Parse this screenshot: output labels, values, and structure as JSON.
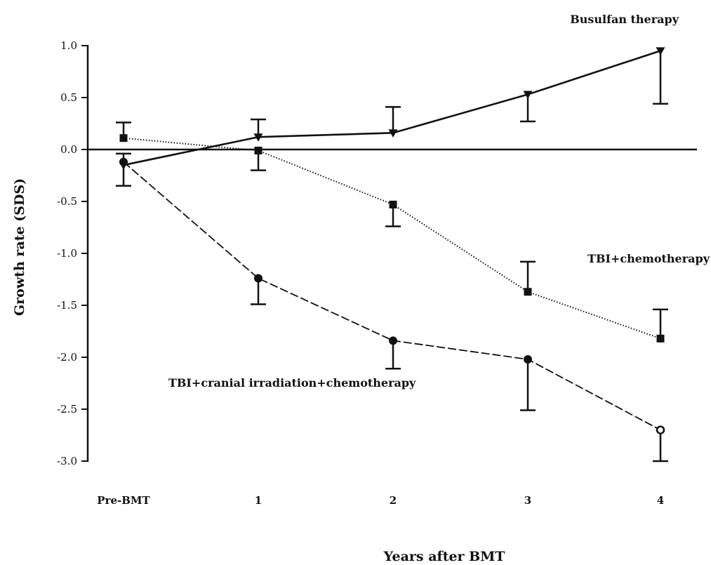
{
  "chart_data": {
    "type": "line",
    "title": "",
    "xlabel": "Years after BMT",
    "ylabel": "Growth rate (SDS)",
    "categories": [
      "Pre-BMT",
      "1",
      "2",
      "3",
      "4"
    ],
    "ylim": [
      -3.0,
      1.0
    ],
    "yticks": [
      "1.0",
      "0.5",
      "0.0",
      "-0.5",
      "-1.0",
      "-1.5",
      "-2.0",
      "-2.5",
      "-3.0"
    ],
    "reference_line": 0.0,
    "grid": false,
    "series": [
      {
        "name": "Busulfan therapy",
        "marker": "triangle-down",
        "line_style": "solid",
        "values": [
          -0.15,
          0.12,
          0.16,
          0.53,
          0.95
        ],
        "error_lower": [
          -0.35,
          null,
          null,
          0.27,
          0.44
        ],
        "error_upper": [
          null,
          0.29,
          0.41,
          null,
          null
        ]
      },
      {
        "name": "TBI+chemotherapy",
        "marker": "square",
        "line_style": "dotted",
        "values": [
          0.11,
          -0.01,
          -0.53,
          -1.37,
          -1.82
        ],
        "error_lower": [
          null,
          -0.2,
          -0.74,
          null,
          null
        ],
        "error_upper": [
          0.26,
          null,
          null,
          -1.08,
          -1.54
        ]
      },
      {
        "name": "TBI+cranial irradiation+chemotherapy",
        "marker": "circle",
        "line_style": "dashed",
        "values": [
          -0.12,
          -1.24,
          -1.84,
          -2.02,
          -2.7
        ],
        "error_lower": [
          null,
          -1.49,
          -2.11,
          -2.51,
          -3.0
        ],
        "error_upper": [
          -0.04,
          null,
          null,
          null,
          null
        ]
      }
    ]
  }
}
